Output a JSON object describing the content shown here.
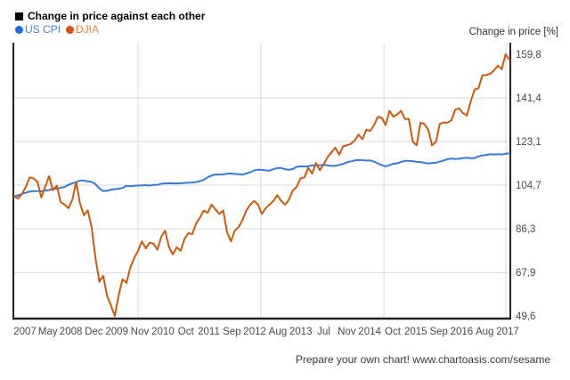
{
  "title": "Change in price against each other",
  "legend": [
    {
      "label": "US CPI",
      "color": "#4285e8",
      "dot": "#1a6ce0"
    },
    {
      "label": "DJIA",
      "color": "#f0814a",
      "dot": "#d5520e"
    }
  ],
  "axis_title": "Change in price [%]",
  "footer": "Prepare your own chart! www.chartoasis.com/sesame",
  "colors": {
    "cpi_line": "#337be0",
    "djia_line": "#cf5a0d",
    "grid": "#d9d9d9",
    "axis": "#222222",
    "tick_text": "#4a4a4a"
  },
  "chart_data": {
    "type": "line",
    "title": "Change in price against each other",
    "ylabel": "Change in price [%]",
    "x_start": "2007-01",
    "x_end": "2017-09",
    "x_resolution": "monthly",
    "xticklabels": [
      "2007",
      "May",
      "2008",
      "Dec",
      "2009",
      "Nov",
      "2010",
      "Oct",
      "2011",
      "Sep",
      "2012",
      "Aug",
      "2013",
      "Jul",
      "Nov",
      "2014",
      "Oct",
      "2015",
      "Sep",
      "2016",
      "Aug",
      "2017"
    ],
    "yticks": [
      "159,8",
      "141,4",
      "123,1",
      "104,7",
      "86,3",
      "67,9",
      "49,6"
    ],
    "ylim": [
      49.6,
      159.8
    ],
    "grid": true,
    "legend_position": "top-left",
    "series": [
      {
        "name": "US CPI",
        "color": "#337be0",
        "values": [
          100,
          100.4,
          100.9,
          101.5,
          102,
          102.2,
          102.2,
          102.1,
          102.4,
          102.6,
          103.2,
          103.1,
          103.6,
          103.9,
          104.8,
          105.4,
          106,
          106.6,
          106.6,
          106.2,
          106.1,
          105.1,
          103.3,
          102.2,
          102.3,
          102.8,
          103,
          103.2,
          103.5,
          104.4,
          104.2,
          104.4,
          104.5,
          104.6,
          104.7,
          104.5,
          104.8,
          104.8,
          105.3,
          105.4,
          105.5,
          105.4,
          105.4,
          105.5,
          105.6,
          105.7,
          105.8,
          106,
          106.4,
          107,
          108,
          108.7,
          109.2,
          109.1,
          109.2,
          109.5,
          109.6,
          109.4,
          109.3,
          109.1,
          109.6,
          110.1,
          110.9,
          111.2,
          111.1,
          110.9,
          110.8,
          111.4,
          111.9,
          111.9,
          111.4,
          111.1,
          111.5,
          112.4,
          112.6,
          112.5,
          112.7,
          113,
          113,
          113.1,
          113.2,
          113,
          112.8,
          112.8,
          113.2,
          113.6,
          114.3,
          114.7,
          115.1,
          115.3,
          115.2,
          115,
          115.1,
          114.6,
          113.8,
          113.1,
          112.6,
          113.1,
          113.7,
          113.9,
          114.5,
          114.9,
          114.9,
          114.8,
          114.5,
          114.4,
          114.1,
          113.8,
          114,
          114.1,
          114.6,
          115.1,
          115.6,
          115.9,
          115.7,
          115.8,
          116.1,
          116.2,
          116,
          116.1,
          116.8,
          117.2,
          117.4,
          117.7,
          117.6,
          117.7,
          117.6,
          117.9,
          118.1
        ]
      },
      {
        "name": "DJIA",
        "color": "#cf5a0d",
        "values": [
          100,
          99,
          101,
          104,
          108,
          107.5,
          106,
          99.5,
          104,
          108.5,
          102.5,
          104.5,
          97.5,
          96.5,
          95,
          98.5,
          106,
          97,
          92,
          94,
          87,
          74,
          64,
          66.5,
          58,
          54,
          49.6,
          58.5,
          65,
          63.5,
          70,
          74,
          77,
          81,
          78,
          80.5,
          80,
          77.5,
          83,
          85.5,
          78.5,
          75.5,
          78.5,
          77,
          82,
          84.5,
          84,
          88.5,
          91,
          94,
          93,
          96.5,
          94.5,
          92.5,
          94,
          85,
          81,
          85.5,
          87,
          90,
          94,
          96.5,
          98,
          96.5,
          92.5,
          95,
          96.5,
          98,
          100.5,
          98,
          96.5,
          98.5,
          102.5,
          104,
          107.5,
          108,
          112,
          109.5,
          114,
          111,
          113.5,
          116.5,
          118.5,
          120.5,
          117.5,
          121,
          121.5,
          122,
          123.5,
          126,
          124,
          128,
          127.5,
          130,
          133.5,
          133,
          130,
          136,
          133.5,
          134.5,
          136,
          132.5,
          132.5,
          123,
          121.5,
          131,
          130.5,
          128,
          121.5,
          123,
          130.5,
          131,
          131,
          132,
          136.5,
          137,
          135,
          134,
          140,
          145,
          145.5,
          151,
          151,
          151.5,
          153,
          155,
          153.5,
          159.8,
          157.5
        ]
      }
    ]
  }
}
